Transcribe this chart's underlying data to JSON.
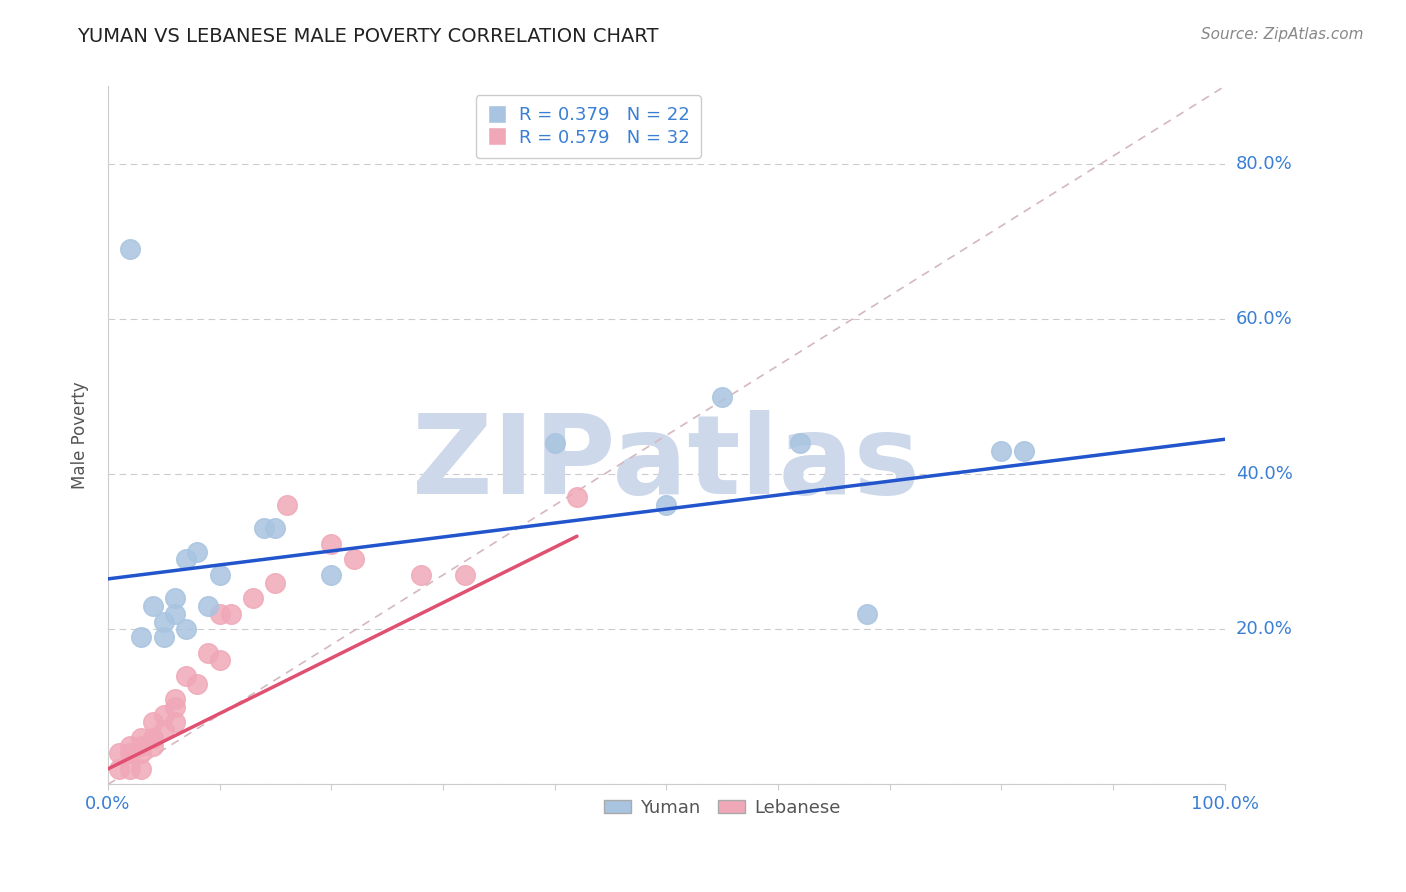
{
  "title": "YUMAN VS LEBANESE MALE POVERTY CORRELATION CHART",
  "source": "Source: ZipAtlas.com",
  "ylabel": "Male Poverty",
  "xlim": [
    0,
    1.0
  ],
  "ylim": [
    0,
    0.9
  ],
  "xticks": [
    0.0,
    0.1,
    0.2,
    0.3,
    0.4,
    0.5,
    0.6,
    0.7,
    0.8,
    0.9,
    1.0
  ],
  "xtick_show": [
    0.0,
    1.0
  ],
  "xtick_labels": [
    "0.0%",
    "100.0%"
  ],
  "yticks": [
    0.0,
    0.2,
    0.4,
    0.6,
    0.8
  ],
  "ytick_labels_right": [
    "",
    "20.0%",
    "40.0%",
    "60.0%",
    "80.0%"
  ],
  "grid_color": "#cccccc",
  "background_color": "#ffffff",
  "yuman_color": "#a8c4e0",
  "lebanese_color": "#f0a8b8",
  "yuman_line_color": "#2255cc",
  "lebanese_line_color": "#e05070",
  "diagonal_color": "#d4b8c0",
  "legend_r_yuman": "R = 0.379",
  "legend_n_yuman": "N = 22",
  "legend_r_lebanese": "R = 0.579",
  "legend_n_lebanese": "N = 32",
  "yuman_scatter_x": [
    0.02,
    0.04,
    0.05,
    0.06,
    0.07,
    0.08,
    0.09,
    0.1,
    0.14,
    0.15,
    0.2,
    0.4,
    0.5,
    0.55,
    0.62,
    0.68,
    0.8,
    0.82,
    0.03,
    0.05,
    0.07,
    0.06
  ],
  "yuman_scatter_y": [
    0.69,
    0.23,
    0.19,
    0.22,
    0.29,
    0.3,
    0.23,
    0.27,
    0.33,
    0.33,
    0.27,
    0.44,
    0.36,
    0.5,
    0.44,
    0.22,
    0.43,
    0.43,
    0.19,
    0.21,
    0.2,
    0.24
  ],
  "lebanese_scatter_x": [
    0.01,
    0.01,
    0.02,
    0.02,
    0.02,
    0.03,
    0.03,
    0.03,
    0.03,
    0.04,
    0.04,
    0.04,
    0.04,
    0.05,
    0.05,
    0.06,
    0.06,
    0.06,
    0.07,
    0.08,
    0.09,
    0.1,
    0.1,
    0.11,
    0.13,
    0.15,
    0.16,
    0.2,
    0.22,
    0.28,
    0.32,
    0.42
  ],
  "lebanese_scatter_y": [
    0.02,
    0.04,
    0.02,
    0.04,
    0.05,
    0.02,
    0.04,
    0.05,
    0.06,
    0.05,
    0.06,
    0.06,
    0.08,
    0.07,
    0.09,
    0.08,
    0.1,
    0.11,
    0.14,
    0.13,
    0.17,
    0.16,
    0.22,
    0.22,
    0.24,
    0.26,
    0.36,
    0.31,
    0.29,
    0.27,
    0.27,
    0.37
  ],
  "yuman_line_x0": 0.0,
  "yuman_line_y0": 0.265,
  "yuman_line_x1": 1.0,
  "yuman_line_y1": 0.445,
  "lebanese_line_x0": 0.0,
  "lebanese_line_y0": 0.02,
  "lebanese_line_x1": 0.42,
  "lebanese_line_y1": 0.32,
  "title_color": "#222222",
  "axis_label_color": "#555555",
  "tick_color": "#3a7fd4",
  "watermark_text": "ZIPatlas",
  "watermark_color": "#cdd8eb",
  "figsize": [
    14.06,
    8.92
  ],
  "dpi": 100
}
